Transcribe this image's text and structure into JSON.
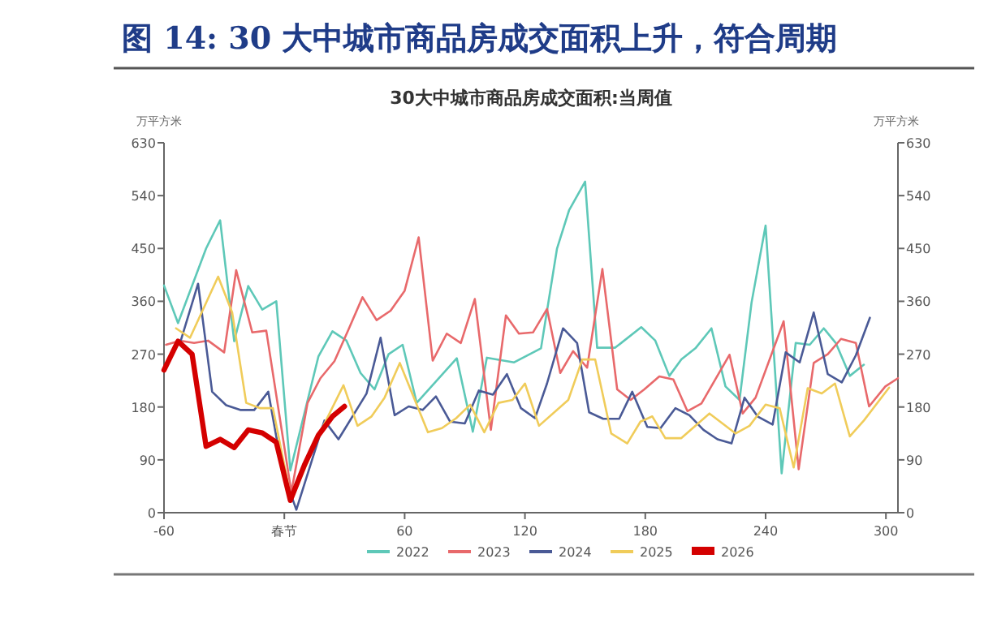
{
  "chart_data": {
    "type": "line",
    "title": "图 14:   30 大中城市商品房成交面积上升，符合周期",
    "subtitle": "30大中城市商品房成交面积:当周值",
    "ylabel": "万平方米",
    "y2label": "万平方米",
    "xlim": [
      -60,
      306
    ],
    "xticks": [
      -60,
      {
        "value": 0,
        "label": "春节"
      },
      60,
      120,
      180,
      240,
      300
    ],
    "ylim": [
      0,
      630
    ],
    "yticks": [
      0,
      90,
      180,
      270,
      360,
      450,
      540,
      630
    ],
    "y2lim": [
      0,
      630
    ],
    "y2ticks": [
      0,
      90,
      180,
      270,
      360,
      450,
      540,
      630
    ],
    "grid": false,
    "legend": "bottom",
    "marker": "none",
    "line_style": "solid",
    "series": [
      {
        "name": "2022",
        "color": "#5ec8b8",
        "x": [
          -60,
          -53,
          -39,
          -32,
          -25,
          -18,
          -11,
          -4,
          3,
          17,
          24,
          31,
          38,
          45,
          52,
          59,
          66,
          86,
          94,
          101,
          114.6,
          128,
          136,
          142,
          150,
          156,
          165,
          178,
          185,
          192,
          198,
          205,
          213,
          220,
          227,
          233,
          240,
          248,
          255,
          262,
          269,
          275,
          282,
          289
        ],
        "values": [
          387,
          323,
          450,
          498,
          292,
          386,
          346,
          360,
          72,
          266,
          309,
          293,
          238,
          210,
          270,
          286,
          187,
          263,
          138,
          264,
          256,
          280,
          450,
          515,
          564,
          281,
          281,
          316,
          293,
          233,
          261,
          280,
          314,
          215,
          192,
          358,
          489,
          67,
          289,
          286,
          314,
          289,
          233,
          252
        ]
      },
      {
        "name": "2023",
        "color": "#e8696b",
        "x": [
          -59,
          -52,
          -45,
          -38,
          -30,
          -24,
          -16,
          -9,
          3.5,
          11.6,
          18,
          25,
          32,
          39,
          46,
          53,
          60,
          67,
          74,
          81,
          88,
          95,
          103,
          110.5,
          117,
          124,
          131,
          137.6,
          144,
          151,
          158.6,
          166,
          172.7,
          179.5,
          187,
          194,
          201,
          208,
          222,
          228.6,
          235,
          249,
          256.5,
          264,
          271,
          277.6,
          285,
          291.6,
          299.7,
          306
        ],
        "values": [
          286,
          293,
          289,
          293,
          273,
          413,
          307,
          310,
          35,
          187,
          229,
          258,
          312,
          367,
          328,
          344,
          378,
          469,
          259,
          305,
          289,
          364,
          141,
          336,
          305,
          307,
          347,
          238,
          275,
          247,
          415,
          210,
          192,
          210,
          232,
          227,
          173,
          186,
          269,
          169,
          196,
          326,
          74,
          255,
          270,
          296,
          289,
          181,
          215,
          229
        ]
      },
      {
        "name": "2024",
        "color": "#4a5a96",
        "x": [
          -52,
          -43,
          -36,
          -29,
          -22,
          -15,
          -8,
          -1,
          6,
          20,
          27,
          41,
          48,
          55,
          62,
          69,
          75.6,
          82.7,
          90,
          97,
          104,
          111,
          118,
          125,
          131,
          139,
          146,
          152,
          159,
          167,
          173.5,
          181,
          187.6,
          195,
          202,
          209,
          216,
          223,
          229.5,
          236,
          243.5,
          250,
          257,
          264,
          271,
          278,
          285,
          292
        ],
        "values": [
          289,
          390,
          206,
          183,
          175,
          175,
          206,
          72,
          5,
          157,
          125,
          203,
          298,
          166,
          181,
          175,
          198,
          155,
          152,
          208,
          201,
          236,
          178,
          161,
          220,
          314,
          289,
          171,
          160,
          160,
          206,
          146,
          144,
          178,
          166,
          141,
          125,
          118,
          196,
          164,
          150,
          273,
          256,
          341,
          236,
          222,
          268,
          332
        ]
      },
      {
        "name": "2025",
        "color": "#f0cc5a",
        "x": [
          -54,
          -47,
          -33,
          -26,
          -19,
          -12,
          -5.7,
          3.5,
          18,
          29.5,
          36.5,
          43.5,
          50,
          57.6,
          71.6,
          78.6,
          85.7,
          92.7,
          99.7,
          106.8,
          113.8,
          120,
          127,
          141.6,
          148.6,
          155,
          163,
          171,
          177.6,
          183.5,
          190,
          198,
          212,
          225,
          232,
          240,
          247,
          254,
          261,
          268,
          274.6,
          282,
          289,
          301.6
        ],
        "values": [
          314,
          298,
          402,
          341,
          187,
          178,
          178,
          21,
          138,
          217,
          148,
          164,
          196,
          255,
          137,
          144,
          161,
          184,
          137,
          187,
          192,
          220,
          148,
          192,
          261,
          261,
          135,
          118,
          155,
          164,
          127,
          127,
          169,
          135,
          148,
          184,
          178,
          77,
          212,
          203,
          220,
          130,
          157,
          213
        ]
      },
      {
        "name": "2026",
        "color": "#d40000",
        "x": [
          -60,
          -53,
          -46,
          -39,
          -32,
          -25,
          -18,
          -11,
          -4,
          3,
          10,
          17,
          24,
          30
        ],
        "values": [
          243,
          292,
          270,
          113,
          125,
          111,
          141,
          136,
          120,
          21,
          81,
          132,
          164,
          181
        ]
      }
    ]
  }
}
